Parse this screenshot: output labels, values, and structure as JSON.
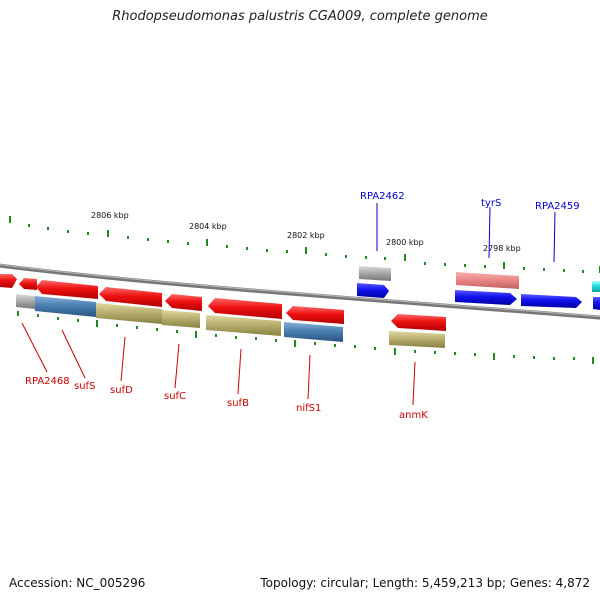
{
  "title": "Rhodopseudomonas palustris CGA009, complete genome",
  "footer": {
    "accession": "Accession: NC_005296",
    "topology": "Topology: circular; Length: 5,459,213 bp; Genes: 4,872"
  },
  "colors": {
    "red_gene": "#ee1111",
    "blue_gene": "#1111ee",
    "pink_gene": "#ee8888",
    "gray_gene": "#aaaaaa",
    "olive_feature": "#b8b070",
    "steelblue_feature": "#4a7fb0",
    "cyan_gene": "#22dddd",
    "backbone": "#888888",
    "ticks": "#228822",
    "label_red": "#cc0000",
    "label_blue": "#0000cc"
  },
  "kbp_labels": [
    "2806 kbp",
    "2804 kbp",
    "2802 kbp",
    "2800 kbp",
    "2798 kbp"
  ],
  "gene_labels": {
    "RPA2462": "RPA2462",
    "tyrS": "tyrS",
    "RPA2459": "RPA2459",
    "RPA2468": "RPA2468",
    "sufS": "sufS",
    "sufD": "sufD",
    "sufC": "sufC",
    "sufB": "sufB",
    "nifS1": "nifS1",
    "anmK": "anmK"
  }
}
